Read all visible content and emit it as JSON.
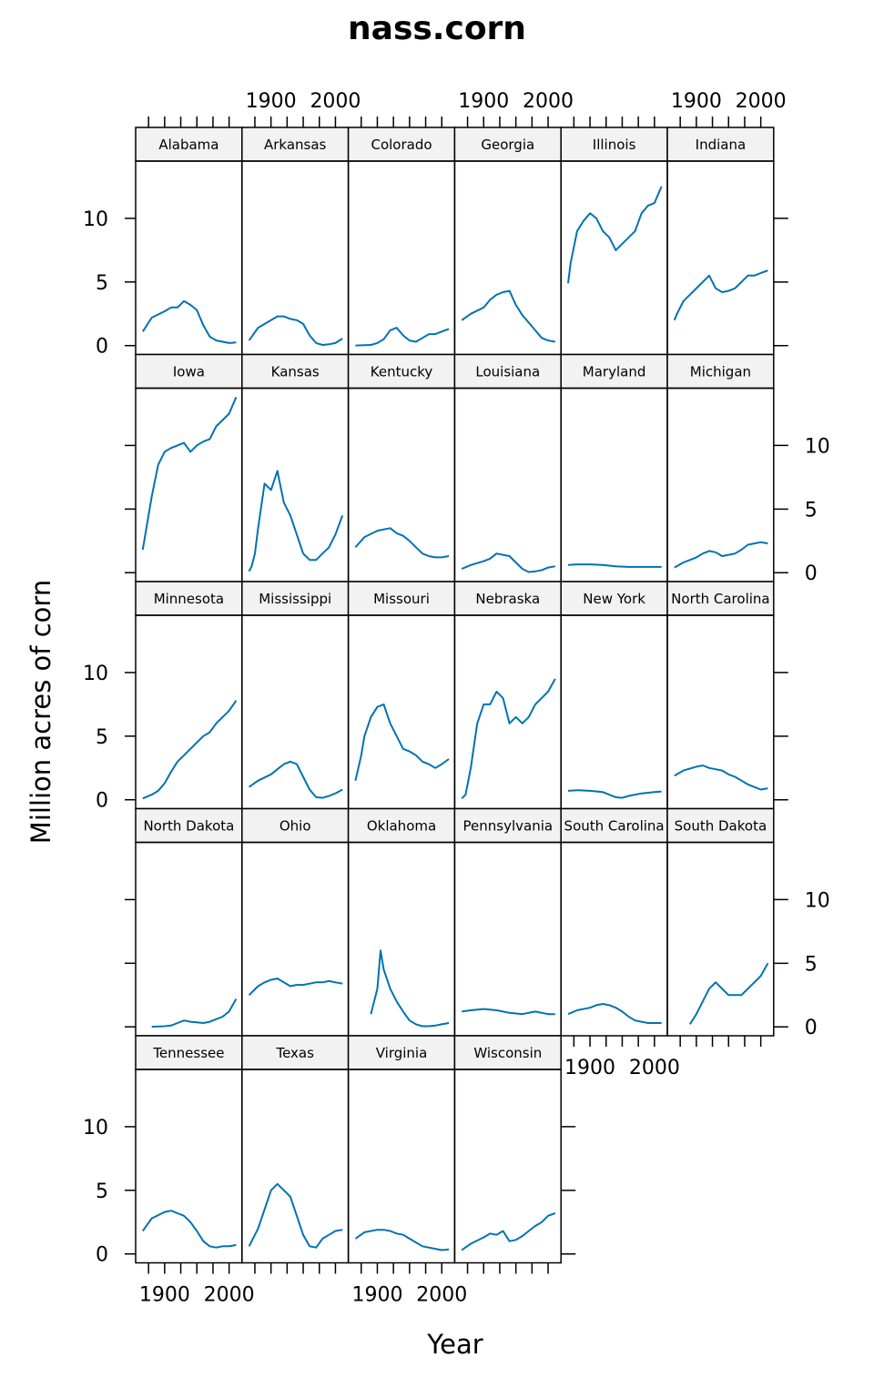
{
  "chart_data": {
    "type": "line",
    "title": "nass.corn",
    "xlabel": "Year",
    "ylabel": "Million acres of corn",
    "xlim": [
      1855,
      2020
    ],
    "ylim": [
      -0.7,
      14.5
    ],
    "x_ticks": [
      1875,
      1900,
      1925,
      1950,
      1975,
      2000
    ],
    "x_tick_labels": [
      {
        "value": 1900,
        "label": "1900"
      },
      {
        "value": 2000,
        "label": "2000"
      }
    ],
    "y_ticks": [
      0,
      5,
      10
    ],
    "y_tick_labels": [
      "0",
      "5",
      "10"
    ],
    "layout": {
      "columns": 6,
      "rows": 5
    },
    "line_color": "#0072B2",
    "strip_color": "#f2f2f2",
    "series": [
      {
        "name": "Alabama",
        "x": [
          1866,
          1880,
          1900,
          1910,
          1920,
          1930,
          1940,
          1950,
          1960,
          1970,
          1980,
          1990,
          2000,
          2011
        ],
        "values": [
          1.1,
          2.2,
          2.7,
          3.0,
          3.0,
          3.5,
          3.2,
          2.8,
          1.6,
          0.7,
          0.4,
          0.3,
          0.2,
          0.25
        ]
      },
      {
        "name": "Arkansas",
        "x": [
          1866,
          1880,
          1900,
          1910,
          1920,
          1930,
          1940,
          1950,
          1960,
          1970,
          1980,
          1990,
          2000,
          2011
        ],
        "values": [
          0.4,
          1.4,
          2.0,
          2.3,
          2.3,
          2.1,
          2.0,
          1.7,
          0.8,
          0.2,
          0.05,
          0.1,
          0.2,
          0.55
        ]
      },
      {
        "name": "Colorado",
        "x": [
          1866,
          1890,
          1900,
          1910,
          1920,
          1930,
          1940,
          1950,
          1960,
          1970,
          1980,
          1990,
          2000,
          2011
        ],
        "values": [
          0.01,
          0.05,
          0.2,
          0.5,
          1.2,
          1.4,
          0.8,
          0.4,
          0.3,
          0.6,
          0.9,
          0.9,
          1.1,
          1.3
        ]
      },
      {
        "name": "Georgia",
        "x": [
          1866,
          1880,
          1900,
          1910,
          1920,
          1930,
          1940,
          1950,
          1960,
          1970,
          1980,
          1990,
          2000,
          2011
        ],
        "values": [
          2.0,
          2.5,
          3.0,
          3.6,
          4.0,
          4.2,
          4.3,
          3.2,
          2.4,
          1.8,
          1.2,
          0.6,
          0.4,
          0.3
        ]
      },
      {
        "name": "Illinois",
        "x": [
          1866,
          1870,
          1880,
          1890,
          1900,
          1910,
          1920,
          1930,
          1940,
          1950,
          1960,
          1970,
          1980,
          1990,
          2000,
          2011
        ],
        "values": [
          4.9,
          6.5,
          9.0,
          9.8,
          10.4,
          10.0,
          9.0,
          8.5,
          7.5,
          8.0,
          8.5,
          9.0,
          10.4,
          11.0,
          11.2,
          12.5
        ]
      },
      {
        "name": "Indiana",
        "x": [
          1866,
          1870,
          1880,
          1890,
          1900,
          1910,
          1920,
          1930,
          1940,
          1950,
          1960,
          1970,
          1980,
          1990,
          2000,
          2011
        ],
        "values": [
          2.0,
          2.5,
          3.5,
          4.0,
          4.5,
          5.0,
          5.5,
          4.5,
          4.2,
          4.3,
          4.5,
          5.0,
          5.5,
          5.5,
          5.7,
          5.9
        ]
      },
      {
        "name": "Iowa",
        "x": [
          1866,
          1870,
          1880,
          1890,
          1900,
          1910,
          1920,
          1930,
          1940,
          1950,
          1960,
          1970,
          1980,
          1990,
          2000,
          2011
        ],
        "values": [
          1.8,
          3.0,
          6.0,
          8.5,
          9.5,
          9.8,
          10.0,
          10.2,
          9.5,
          10.0,
          10.3,
          10.5,
          11.5,
          12.0,
          12.5,
          13.8
        ]
      },
      {
        "name": "Kansas",
        "x": [
          1866,
          1870,
          1875,
          1880,
          1890,
          1900,
          1910,
          1920,
          1930,
          1940,
          1950,
          1960,
          1970,
          1980,
          1990,
          2000,
          2011
        ],
        "values": [
          0.1,
          0.5,
          1.5,
          3.5,
          7.0,
          6.5,
          8.0,
          5.5,
          4.5,
          3.0,
          1.5,
          1.0,
          1.0,
          1.5,
          2.0,
          3.0,
          4.5
        ]
      },
      {
        "name": "Kentucky",
        "x": [
          1866,
          1880,
          1900,
          1910,
          1920,
          1930,
          1940,
          1950,
          1960,
          1970,
          1980,
          1990,
          2000,
          2011
        ],
        "values": [
          2.0,
          2.8,
          3.3,
          3.4,
          3.5,
          3.1,
          2.9,
          2.5,
          2.0,
          1.5,
          1.3,
          1.2,
          1.2,
          1.3
        ]
      },
      {
        "name": "Louisiana",
        "x": [
          1866,
          1880,
          1900,
          1910,
          1920,
          1930,
          1940,
          1950,
          1960,
          1970,
          1980,
          1990,
          2000,
          2011
        ],
        "values": [
          0.3,
          0.6,
          0.9,
          1.1,
          1.5,
          1.4,
          1.3,
          0.8,
          0.3,
          0.05,
          0.1,
          0.2,
          0.4,
          0.5
        ]
      },
      {
        "name": "Maryland",
        "x": [
          1866,
          1880,
          1900,
          1920,
          1940,
          1960,
          1980,
          2000,
          2011
        ],
        "values": [
          0.6,
          0.65,
          0.65,
          0.6,
          0.5,
          0.45,
          0.45,
          0.45,
          0.45
        ]
      },
      {
        "name": "Michigan",
        "x": [
          1866,
          1880,
          1900,
          1910,
          1920,
          1930,
          1940,
          1950,
          1960,
          1970,
          1980,
          1990,
          2000,
          2011
        ],
        "values": [
          0.4,
          0.8,
          1.2,
          1.5,
          1.7,
          1.6,
          1.3,
          1.4,
          1.5,
          1.8,
          2.2,
          2.3,
          2.4,
          2.3
        ]
      },
      {
        "name": "Minnesota",
        "x": [
          1866,
          1880,
          1890,
          1900,
          1910,
          1920,
          1930,
          1940,
          1950,
          1960,
          1970,
          1980,
          1990,
          2000,
          2011
        ],
        "values": [
          0.1,
          0.4,
          0.7,
          1.3,
          2.2,
          3.0,
          3.5,
          4.0,
          4.5,
          5.0,
          5.3,
          6.0,
          6.5,
          7.0,
          7.8
        ]
      },
      {
        "name": "Mississippi",
        "x": [
          1866,
          1880,
          1900,
          1910,
          1920,
          1930,
          1940,
          1950,
          1960,
          1970,
          1980,
          1990,
          2000,
          2011
        ],
        "values": [
          1.0,
          1.5,
          2.0,
          2.4,
          2.8,
          3.0,
          2.8,
          1.8,
          0.8,
          0.2,
          0.15,
          0.3,
          0.5,
          0.8
        ]
      },
      {
        "name": "Missouri",
        "x": [
          1866,
          1875,
          1880,
          1890,
          1900,
          1910,
          1920,
          1930,
          1940,
          1950,
          1960,
          1970,
          1980,
          1990,
          2000,
          2011
        ],
        "values": [
          1.5,
          3.5,
          5.0,
          6.5,
          7.3,
          7.5,
          6.0,
          5.0,
          4.0,
          3.8,
          3.5,
          3.0,
          2.8,
          2.5,
          2.8,
          3.2
        ]
      },
      {
        "name": "Nebraska",
        "x": [
          1866,
          1872,
          1880,
          1890,
          1900,
          1910,
          1920,
          1930,
          1940,
          1950,
          1960,
          1970,
          1980,
          1990,
          2000,
          2011
        ],
        "values": [
          0.1,
          0.4,
          2.5,
          6.0,
          7.5,
          7.5,
          8.5,
          8.0,
          6.0,
          6.5,
          6.0,
          6.5,
          7.5,
          8.0,
          8.5,
          9.5
        ]
      },
      {
        "name": "New York",
        "x": [
          1866,
          1880,
          1900,
          1920,
          1940,
          1950,
          1960,
          1980,
          2000,
          2011
        ],
        "values": [
          0.7,
          0.75,
          0.7,
          0.6,
          0.2,
          0.15,
          0.3,
          0.5,
          0.6,
          0.65
        ]
      },
      {
        "name": "North Carolina",
        "x": [
          1866,
          1880,
          1900,
          1910,
          1920,
          1930,
          1940,
          1950,
          1960,
          1970,
          1980,
          1990,
          2000,
          2011
        ],
        "values": [
          1.9,
          2.3,
          2.6,
          2.7,
          2.5,
          2.4,
          2.3,
          2.0,
          1.8,
          1.5,
          1.2,
          1.0,
          0.8,
          0.9
        ]
      },
      {
        "name": "North Dakota",
        "x": [
          1880,
          1900,
          1910,
          1920,
          1930,
          1940,
          1950,
          1960,
          1970,
          1980,
          1990,
          2000,
          2011
        ],
        "values": [
          0.01,
          0.05,
          0.1,
          0.3,
          0.5,
          0.4,
          0.35,
          0.3,
          0.4,
          0.6,
          0.8,
          1.2,
          2.2
        ]
      },
      {
        "name": "Ohio",
        "x": [
          1866,
          1880,
          1890,
          1900,
          1910,
          1920,
          1930,
          1940,
          1950,
          1960,
          1970,
          1980,
          1990,
          2000,
          2011
        ],
        "values": [
          2.5,
          3.2,
          3.5,
          3.7,
          3.8,
          3.5,
          3.2,
          3.3,
          3.3,
          3.4,
          3.5,
          3.5,
          3.6,
          3.5,
          3.4
        ]
      },
      {
        "name": "Oklahoma",
        "x": [
          1890,
          1900,
          1905,
          1910,
          1920,
          1930,
          1940,
          1950,
          1960,
          1970,
          1980,
          1990,
          2000,
          2011
        ],
        "values": [
          1.0,
          3.0,
          6.0,
          4.5,
          3.0,
          2.0,
          1.2,
          0.5,
          0.2,
          0.05,
          0.05,
          0.1,
          0.2,
          0.3
        ]
      },
      {
        "name": "Pennsylvania",
        "x": [
          1866,
          1880,
          1900,
          1920,
          1940,
          1960,
          1980,
          2000,
          2011
        ],
        "values": [
          1.2,
          1.3,
          1.4,
          1.3,
          1.1,
          1.0,
          1.2,
          1.0,
          1.0
        ]
      },
      {
        "name": "South Carolina",
        "x": [
          1866,
          1880,
          1900,
          1910,
          1920,
          1930,
          1940,
          1950,
          1960,
          1970,
          1980,
          1990,
          2000,
          2011
        ],
        "values": [
          1.0,
          1.3,
          1.5,
          1.7,
          1.8,
          1.7,
          1.5,
          1.2,
          0.8,
          0.5,
          0.4,
          0.3,
          0.3,
          0.3
        ]
      },
      {
        "name": "South Dakota",
        "x": [
          1890,
          1900,
          1910,
          1920,
          1930,
          1940,
          1950,
          1960,
          1970,
          1980,
          1990,
          2000,
          2011
        ],
        "values": [
          0.2,
          1.0,
          2.0,
          3.0,
          3.5,
          3.0,
          2.5,
          2.5,
          2.5,
          3.0,
          3.5,
          4.0,
          5.0
        ]
      },
      {
        "name": "Tennessee",
        "x": [
          1866,
          1880,
          1900,
          1910,
          1920,
          1930,
          1940,
          1950,
          1960,
          1970,
          1980,
          1990,
          2000,
          2011
        ],
        "values": [
          1.8,
          2.8,
          3.3,
          3.4,
          3.2,
          3.0,
          2.5,
          1.8,
          1.0,
          0.6,
          0.5,
          0.6,
          0.6,
          0.7
        ]
      },
      {
        "name": "Texas",
        "x": [
          1866,
          1880,
          1890,
          1900,
          1910,
          1920,
          1930,
          1940,
          1950,
          1960,
          1970,
          1980,
          1990,
          2000,
          2011
        ],
        "values": [
          0.6,
          2.0,
          3.5,
          5.0,
          5.5,
          5.0,
          4.5,
          3.0,
          1.5,
          0.6,
          0.5,
          1.2,
          1.5,
          1.8,
          1.9
        ]
      },
      {
        "name": "Virginia",
        "x": [
          1866,
          1880,
          1900,
          1910,
          1920,
          1930,
          1940,
          1950,
          1960,
          1970,
          1980,
          1990,
          2000,
          2011
        ],
        "values": [
          1.2,
          1.7,
          1.9,
          1.9,
          1.8,
          1.6,
          1.5,
          1.2,
          0.9,
          0.6,
          0.5,
          0.4,
          0.3,
          0.35
        ]
      },
      {
        "name": "Wisconsin",
        "x": [
          1866,
          1880,
          1900,
          1910,
          1920,
          1930,
          1940,
          1950,
          1960,
          1970,
          1980,
          1990,
          2000,
          2011
        ],
        "values": [
          0.3,
          0.8,
          1.3,
          1.6,
          1.5,
          1.8,
          1.0,
          1.1,
          1.4,
          1.8,
          2.2,
          2.5,
          3.0,
          3.2
        ]
      }
    ]
  }
}
